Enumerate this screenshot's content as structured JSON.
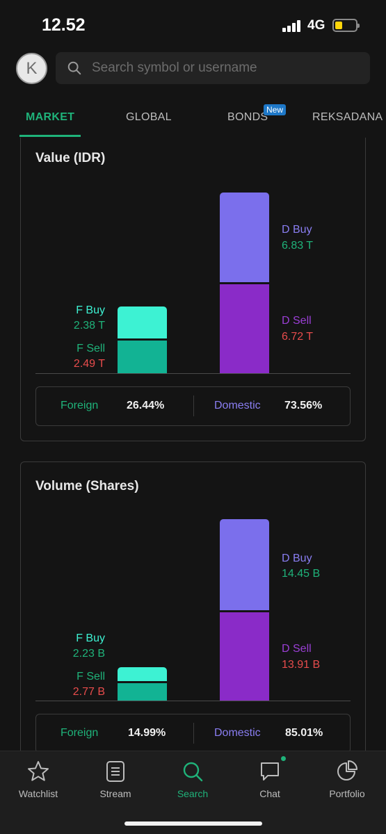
{
  "status_bar": {
    "time": "12.52",
    "network": "4G",
    "battery_level": 0.3
  },
  "header": {
    "avatar_letter": "K",
    "search_placeholder": "Search symbol or username"
  },
  "tabs": [
    {
      "label": "MARKET",
      "active": true
    },
    {
      "label": "GLOBAL",
      "active": false
    },
    {
      "label": "BONDS",
      "active": false,
      "badge": "New"
    },
    {
      "label": "REKSADANA",
      "active": false
    }
  ],
  "value_card": {
    "title": "Value (IDR)",
    "f_buy_label": "F Buy",
    "f_buy": "2.38 T",
    "f_sell_label": "F Sell",
    "f_sell": "2.49 T",
    "d_buy_label": "D Buy",
    "d_buy": "6.83 T",
    "d_sell_label": "D Sell",
    "d_sell": "6.72 T",
    "foreign_label": "Foreign",
    "foreign_pct": "26.44%",
    "domestic_label": "Domestic",
    "domestic_pct": "73.56%"
  },
  "volume_card": {
    "title": "Volume (Shares)",
    "f_buy_label": "F Buy",
    "f_buy": "2.23 B",
    "f_sell_label": "F Sell",
    "f_sell": "2.77 B",
    "d_buy_label": "D Buy",
    "d_buy": "14.45 B",
    "d_sell_label": "D Sell",
    "d_sell": "13.91 B",
    "foreign_label": "Foreign",
    "foreign_pct": "14.99%",
    "domestic_label": "Domestic",
    "domestic_pct": "85.01%"
  },
  "chart_data": [
    {
      "type": "bar",
      "title": "Value (IDR)",
      "categories": [
        "Foreign",
        "Domestic"
      ],
      "series": [
        {
          "name": "Buy",
          "values": [
            2.38,
            6.83
          ]
        },
        {
          "name": "Sell",
          "values": [
            2.49,
            6.72
          ]
        }
      ],
      "unit": "T",
      "stacked": true
    },
    {
      "type": "bar",
      "title": "Volume (Shares)",
      "categories": [
        "Foreign",
        "Domestic"
      ],
      "series": [
        {
          "name": "Buy",
          "values": [
            2.23,
            14.45
          ]
        },
        {
          "name": "Sell",
          "values": [
            2.77,
            13.91
          ]
        }
      ],
      "unit": "B",
      "stacked": true
    }
  ],
  "colors": {
    "accent": "#1fb37a",
    "foreign_buy": "#3df2d3",
    "foreign_sell": "#12b394",
    "domestic_buy": "#7b6fec",
    "domestic_sell": "#8a2bc8",
    "sell_value": "#e84c4c"
  },
  "bottom_nav": [
    {
      "label": "Watchlist",
      "icon": "star-icon",
      "active": false
    },
    {
      "label": "Stream",
      "icon": "stream-icon",
      "active": false
    },
    {
      "label": "Search",
      "icon": "search-icon",
      "active": true
    },
    {
      "label": "Chat",
      "icon": "chat-icon",
      "active": false
    },
    {
      "label": "Portfolio",
      "icon": "pie-chart-icon",
      "active": false
    }
  ]
}
